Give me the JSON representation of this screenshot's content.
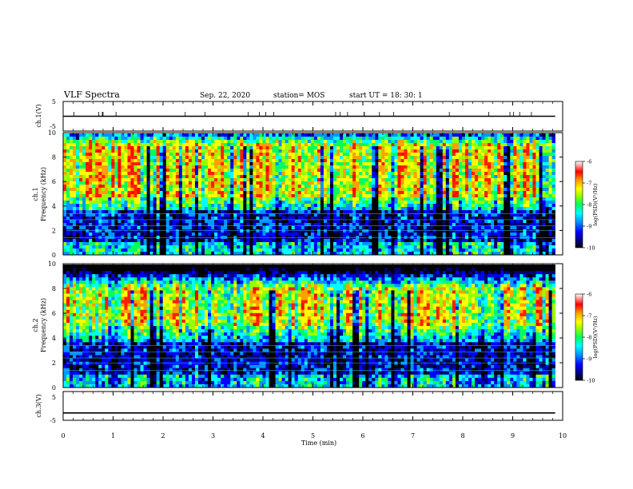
{
  "header": {
    "title": "VLF Spectra",
    "date": "Sep. 22, 2020",
    "station": "station= MOS",
    "start": "start  UT =   18: 30: 1"
  },
  "chart_data": [
    {
      "type": "line",
      "panel": "ch1-waveform",
      "ylabel": "ch.1(V)",
      "yticks": [
        "5",
        "-5"
      ],
      "ylim": [
        -5,
        5
      ],
      "x": [
        0,
        9.85
      ],
      "y": [
        0,
        0
      ]
    },
    {
      "type": "heatmap",
      "panel": "ch1-spectrogram",
      "ylabel_channel": "ch.1",
      "ylabel": "Frequency (kHz)",
      "yticks": [
        "0",
        "2",
        "4",
        "6",
        "8",
        "10"
      ],
      "ylim": [
        0,
        10
      ],
      "xlim": [
        0,
        9.85
      ],
      "intense_band_khz": [
        4.8,
        9.0
      ],
      "colorbar": {
        "label": "log(PSD)(V²/Hz)",
        "ticks": [
          "-6",
          "-7",
          "-8",
          "-9",
          "-10"
        ],
        "range": [
          -10,
          -6
        ]
      }
    },
    {
      "type": "heatmap",
      "panel": "ch2-spectrogram",
      "ylabel_channel": "ch.2",
      "ylabel": "Frequency (kHz)",
      "yticks": [
        "0",
        "2",
        "4",
        "6",
        "8",
        "10"
      ],
      "ylim": [
        0,
        10
      ],
      "xlim": [
        0,
        9.85
      ],
      "intense_band_khz": [
        5.0,
        8.0
      ],
      "colorbar": {
        "label": "log(PSD)(V²/Hz)",
        "ticks": [
          "-6",
          "-7",
          "-8",
          "-9",
          "-10"
        ],
        "range": [
          -10,
          -6
        ]
      }
    },
    {
      "type": "line",
      "panel": "ch3-waveform",
      "ylabel": "ch.3(V)",
      "yticks": [
        "5",
        "-5"
      ],
      "ylim": [
        -5,
        5
      ],
      "x": [
        0,
        9.85
      ],
      "y": [
        -1.6,
        -1.6
      ]
    }
  ],
  "xaxis": {
    "label": "Time (min)",
    "ticks": [
      "0",
      "1",
      "2",
      "3",
      "4",
      "5",
      "6",
      "7",
      "8",
      "9",
      "10"
    ],
    "xlim": [
      0,
      10
    ]
  },
  "colors": {
    "scale": [
      "#000000",
      "#00007a",
      "#0000ff",
      "#0096ff",
      "#00ffff",
      "#00ff60",
      "#9aff00",
      "#ffff00",
      "#ffa000",
      "#ff2000",
      "#ff0000",
      "#ffb0b0",
      "#ffffff"
    ]
  }
}
